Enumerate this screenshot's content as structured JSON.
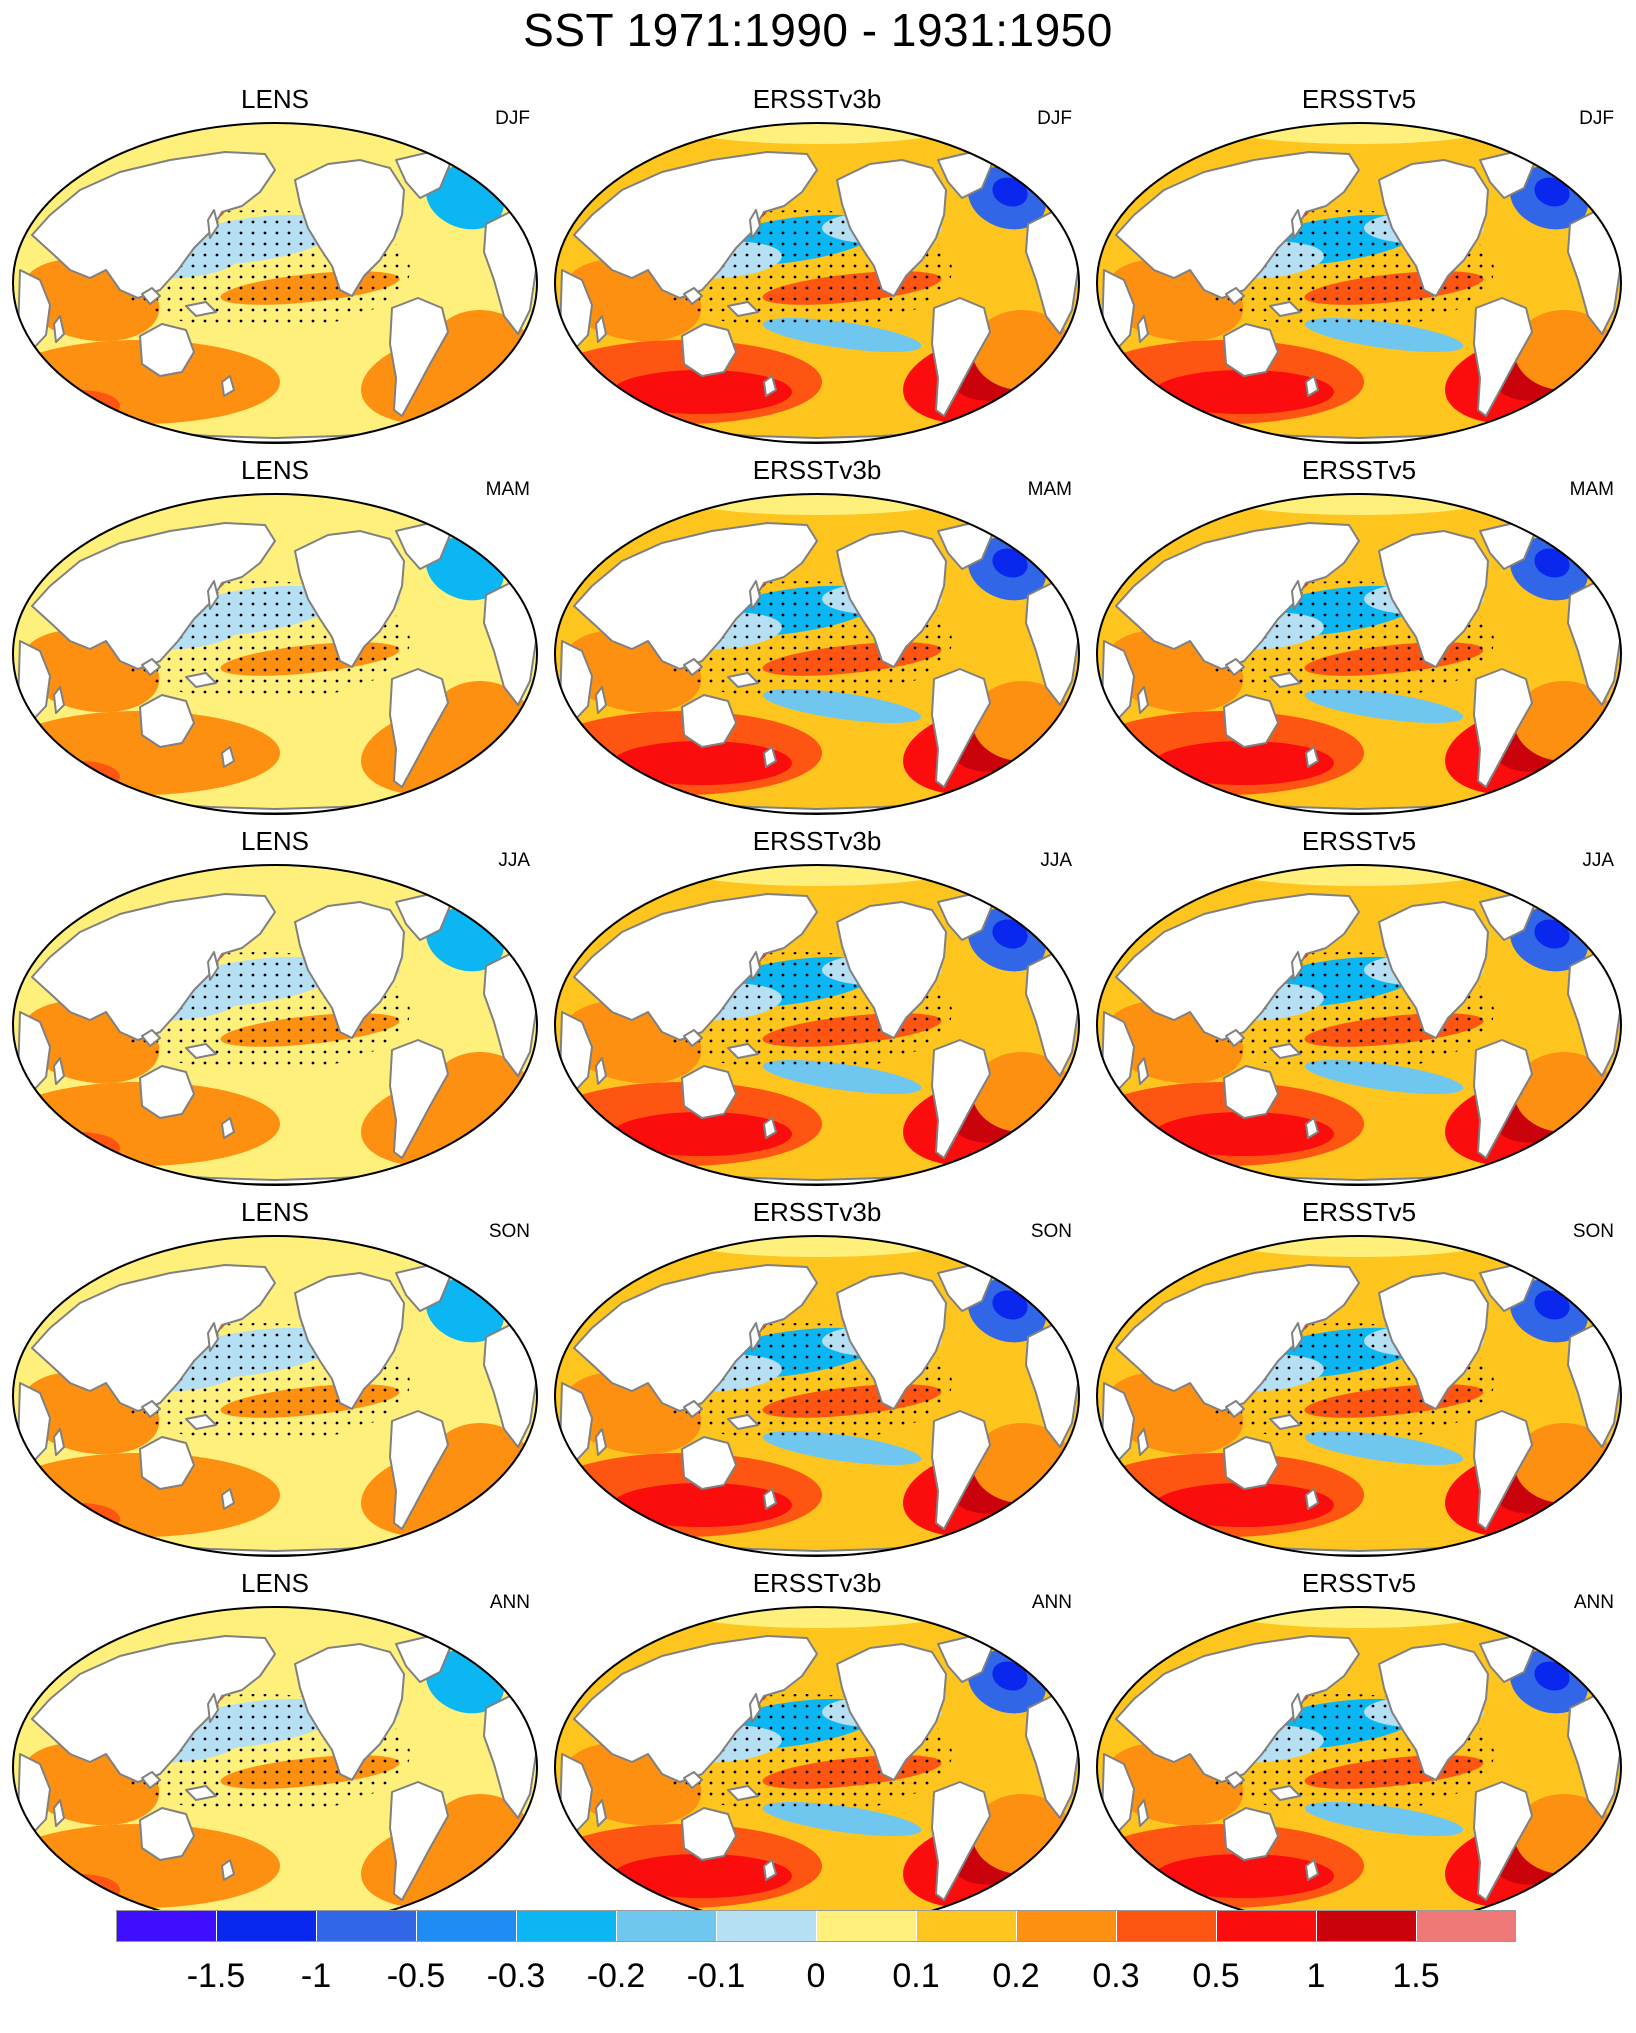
{
  "figure": {
    "title": "SST 1971:1990 - 1931:1950"
  },
  "columns": [
    "LENS",
    "ERSSTv3b",
    "ERSSTv5"
  ],
  "seasons": [
    "DJF",
    "MAM",
    "JJA",
    "SON",
    "ANN"
  ],
  "panels": [
    {
      "dataset": "LENS",
      "season": "DJF",
      "stippled": true
    },
    {
      "dataset": "ERSSTv3b",
      "season": "DJF",
      "stippled": true
    },
    {
      "dataset": "ERSSTv5",
      "season": "DJF",
      "stippled": true
    },
    {
      "dataset": "LENS",
      "season": "MAM",
      "stippled": true
    },
    {
      "dataset": "ERSSTv3b",
      "season": "MAM",
      "stippled": true
    },
    {
      "dataset": "ERSSTv5",
      "season": "MAM",
      "stippled": true
    },
    {
      "dataset": "LENS",
      "season": "JJA",
      "stippled": true
    },
    {
      "dataset": "ERSSTv3b",
      "season": "JJA",
      "stippled": true
    },
    {
      "dataset": "ERSSTv5",
      "season": "JJA",
      "stippled": true
    },
    {
      "dataset": "LENS",
      "season": "SON",
      "stippled": true
    },
    {
      "dataset": "ERSSTv3b",
      "season": "SON",
      "stippled": true
    },
    {
      "dataset": "ERSSTv5",
      "season": "SON",
      "stippled": true
    },
    {
      "dataset": "LENS",
      "season": "ANN",
      "stippled": true
    },
    {
      "dataset": "ERSSTv3b",
      "season": "ANN",
      "stippled": true
    },
    {
      "dataset": "ERSSTv5",
      "season": "ANN",
      "stippled": true
    }
  ],
  "colorbar": {
    "labels": [
      "-1.5",
      "-1",
      "-0.5",
      "-0.3",
      "-0.2",
      "-0.1",
      "0",
      "0.1",
      "0.2",
      "0.3",
      "0.5",
      "1",
      "1.5"
    ],
    "colors": [
      "#3f0dff",
      "#0a27ee",
      "#3166e6",
      "#1f8cf4",
      "#0bb6f2",
      "#6fc7ef",
      "#b5dff2",
      "#fff07c",
      "#fdc51e",
      "#fd8f11",
      "#fe5512",
      "#fa0d0c",
      "#c9020b",
      "#ee7878"
    ]
  },
  "map_style": {
    "land": "#ffffff",
    "coastline": "#808080",
    "outline": "#000000",
    "stipple": "#000000"
  }
}
